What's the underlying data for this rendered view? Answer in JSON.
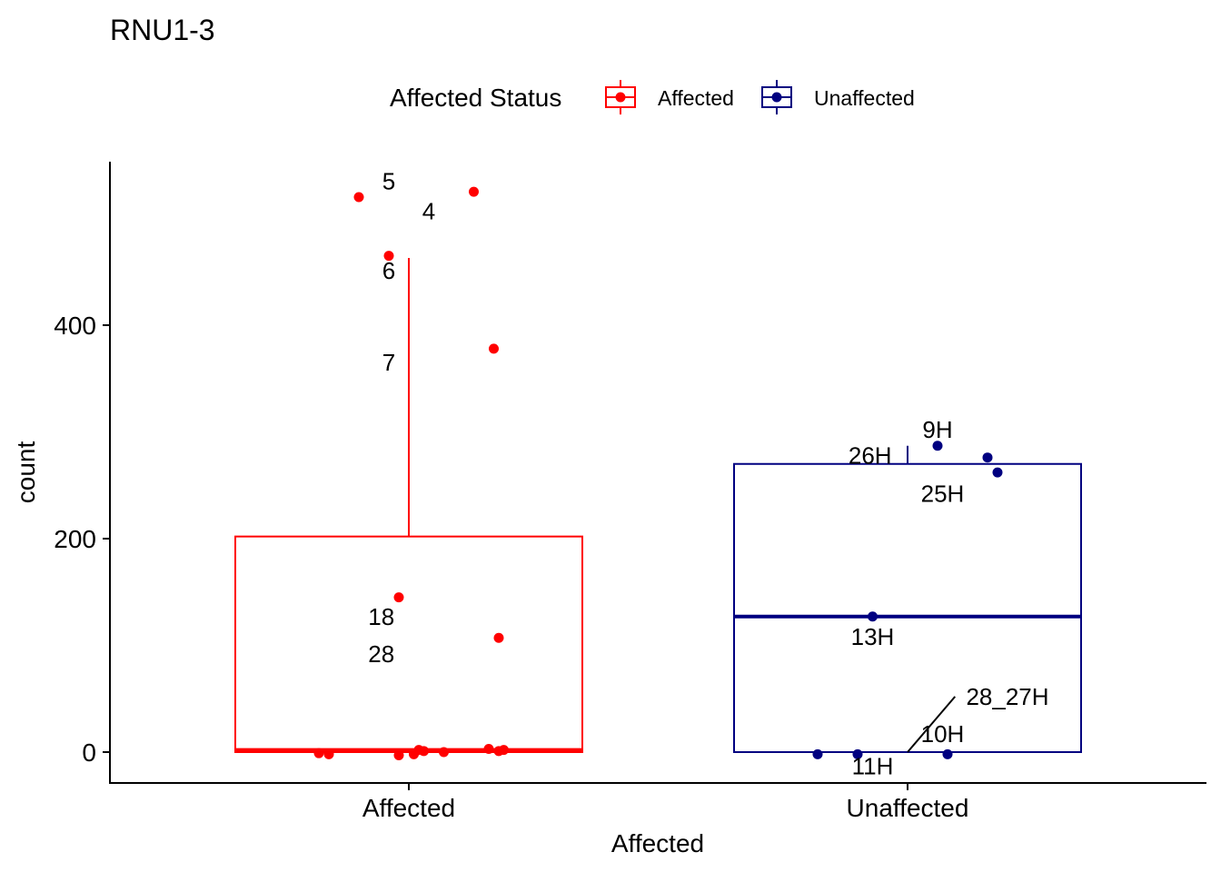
{
  "chart_data": {
    "type": "boxplot",
    "title": "RNU1-3",
    "xlabel": "Affected",
    "ylabel": "count",
    "legend": {
      "title": "Affected Status",
      "placement": "top",
      "entries": [
        "Affected",
        "Unaffected"
      ]
    },
    "categories": [
      "Affected",
      "Unaffected"
    ],
    "y_ticks": [
      0,
      200,
      400
    ],
    "y_tick_labels": [
      "0",
      "200",
      "400"
    ],
    "ylim": [
      -30,
      555
    ],
    "grid": false,
    "colors": {
      "Affected": "#ff0000",
      "Unaffected": "#000080"
    },
    "boxes": [
      {
        "category": "Affected",
        "q1": 0,
        "median": 2,
        "q3": 202,
        "whisker_low": 0,
        "whisker_high": 463
      },
      {
        "category": "Unaffected",
        "q1": 0,
        "median": 127,
        "q3": 270,
        "whisker_low": 0,
        "whisker_high": 287
      }
    ],
    "points": [
      {
        "category": "Affected",
        "jitter": -0.1,
        "y": 520
      },
      {
        "category": "Affected",
        "jitter": 0.13,
        "y": 525
      },
      {
        "category": "Affected",
        "jitter": -0.04,
        "y": 465
      },
      {
        "category": "Affected",
        "jitter": 0.17,
        "y": 378
      },
      {
        "category": "Affected",
        "jitter": -0.02,
        "y": 145
      },
      {
        "category": "Affected",
        "jitter": 0.18,
        "y": 107
      },
      {
        "category": "Affected",
        "jitter": -0.18,
        "y": -1
      },
      {
        "category": "Affected",
        "jitter": -0.16,
        "y": -2
      },
      {
        "category": "Affected",
        "jitter": -0.02,
        "y": -3
      },
      {
        "category": "Affected",
        "jitter": 0.01,
        "y": -2
      },
      {
        "category": "Affected",
        "jitter": 0.02,
        "y": 2
      },
      {
        "category": "Affected",
        "jitter": 0.03,
        "y": 1
      },
      {
        "category": "Affected",
        "jitter": 0.07,
        "y": 0
      },
      {
        "category": "Affected",
        "jitter": 0.16,
        "y": 3
      },
      {
        "category": "Affected",
        "jitter": 0.18,
        "y": 1
      },
      {
        "category": "Affected",
        "jitter": 0.19,
        "y": 2
      },
      {
        "category": "Unaffected",
        "jitter": 0.06,
        "y": 287
      },
      {
        "category": "Unaffected",
        "jitter": 0.16,
        "y": 276
      },
      {
        "category": "Unaffected",
        "jitter": 0.18,
        "y": 262
      },
      {
        "category": "Unaffected",
        "jitter": -0.07,
        "y": 127
      },
      {
        "category": "Unaffected",
        "jitter": -0.18,
        "y": -2
      },
      {
        "category": "Unaffected",
        "jitter": -0.1,
        "y": -2
      },
      {
        "category": "Unaffected",
        "jitter": 0.08,
        "y": -2
      }
    ],
    "point_labels": [
      {
        "text": "5",
        "category": "Affected",
        "jitter": -0.04,
        "y": 535
      },
      {
        "text": "4",
        "category": "Affected",
        "jitter": 0.04,
        "y": 507
      },
      {
        "text": "6",
        "category": "Affected",
        "jitter": -0.04,
        "y": 451
      },
      {
        "text": "7",
        "category": "Affected",
        "jitter": -0.04,
        "y": 365
      },
      {
        "text": "18",
        "category": "Affected",
        "jitter": -0.055,
        "y": 127
      },
      {
        "text": "28",
        "category": "Affected",
        "jitter": -0.055,
        "y": 92
      },
      {
        "text": "9H",
        "category": "Unaffected",
        "jitter": 0.06,
        "y": 302
      },
      {
        "text": "26H",
        "category": "Unaffected",
        "jitter": -0.075,
        "y": 278
      },
      {
        "text": "25H",
        "category": "Unaffected",
        "jitter": 0.07,
        "y": 242
      },
      {
        "text": "13H",
        "category": "Unaffected",
        "jitter": -0.07,
        "y": 108
      },
      {
        "text": "28_27H",
        "category": "Unaffected",
        "jitter": 0.2,
        "y": 52
      },
      {
        "text": "10H",
        "category": "Unaffected",
        "jitter": 0.07,
        "y": 17
      },
      {
        "text": "11H",
        "category": "Unaffected",
        "jitter": -0.07,
        "y": -13
      }
    ],
    "label_segments": [
      {
        "category": "Unaffected",
        "from_jitter": 0.0,
        "from_y": 0,
        "to_jitter": 0.095,
        "to_y": 52
      }
    ]
  }
}
